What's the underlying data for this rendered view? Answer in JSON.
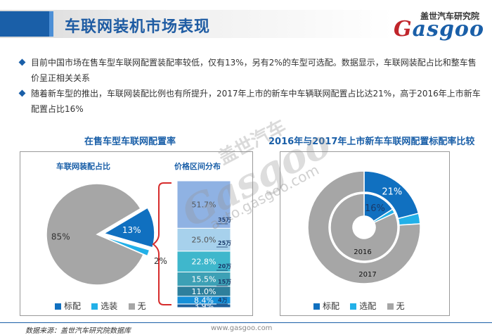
{
  "header": {
    "title": "车联网装机市场表现",
    "logo_cn": "盖世汽车研究院",
    "logo_en_prefix": "G",
    "logo_en_rest": "asgoo"
  },
  "bullets": [
    "目前中国市场在售车型车联网配置装配率较低，仅有13%，另有2%的车型可选配。数据显示，车联网装配占比和整车售价呈正相关关系",
    "随着新车型的推出，车联网装配比例也有所提升，2017年上市的新车中车辆联网配置占比达21%，高于2016年上市新车配置占比16%"
  ],
  "left_panel": {
    "title": "在售车型车联网配置率",
    "pie_subtitle": "车联网装配占比",
    "bar_subtitle": "价格区间分布",
    "legend": [
      "标配",
      "选装",
      "无"
    ]
  },
  "right_panel": {
    "title": "2016年与2017年上市新车车联网配置标配率比较",
    "legend": [
      "标配",
      "选配",
      "无"
    ],
    "ring_labels": [
      "2016",
      "2017"
    ]
  },
  "colors": {
    "standard": "#1070c0",
    "optional": "#22b0e8",
    "none": "#a6a6a6",
    "accent": "#1a5fa8"
  },
  "chart_data": [
    {
      "type": "pie",
      "title": "车联网装配占比",
      "labels": [
        "标配",
        "选装",
        "无"
      ],
      "values": [
        13,
        2,
        85
      ],
      "value_labels": [
        "13%",
        "2%",
        "85%"
      ]
    },
    {
      "type": "bar",
      "title": "价格区间分布",
      "stacked": true,
      "segments": [
        {
          "value": 3.9,
          "label": "3.9%"
        },
        {
          "value": 8.4,
          "label": "8.4%"
        },
        {
          "value": 11.0,
          "label": "11.0%"
        },
        {
          "value": 15.5,
          "label": "15.5%"
        },
        {
          "value": 22.8,
          "label": "22.8%"
        },
        {
          "value": 25.0,
          "label": "25.0%"
        },
        {
          "value": 51.7,
          "label": "51.7%"
        }
      ],
      "price_ticks": [
        "35万",
        "25万",
        "20万",
        "15万",
        "4万"
      ]
    },
    {
      "type": "pie",
      "subtype": "donut",
      "title": "2016年与2017年上市新车车联网配置标配率比较",
      "labels": [
        "标配",
        "选配",
        "无"
      ],
      "series": [
        {
          "name": "2016",
          "values": [
            16,
            2,
            82
          ],
          "value_labels": [
            "16%",
            "",
            ""
          ]
        },
        {
          "name": "2017",
          "values": [
            21,
            3,
            76
          ],
          "value_labels": [
            "21%",
            "",
            ""
          ]
        }
      ]
    }
  ],
  "footer": {
    "source": "数据来源：盖世汽车研究院数据库",
    "url": "www.gasgoo.com"
  },
  "watermark": {
    "cn": "盖世汽车",
    "en": "Gasgoo",
    "url": "auto.gasgoo.com"
  }
}
